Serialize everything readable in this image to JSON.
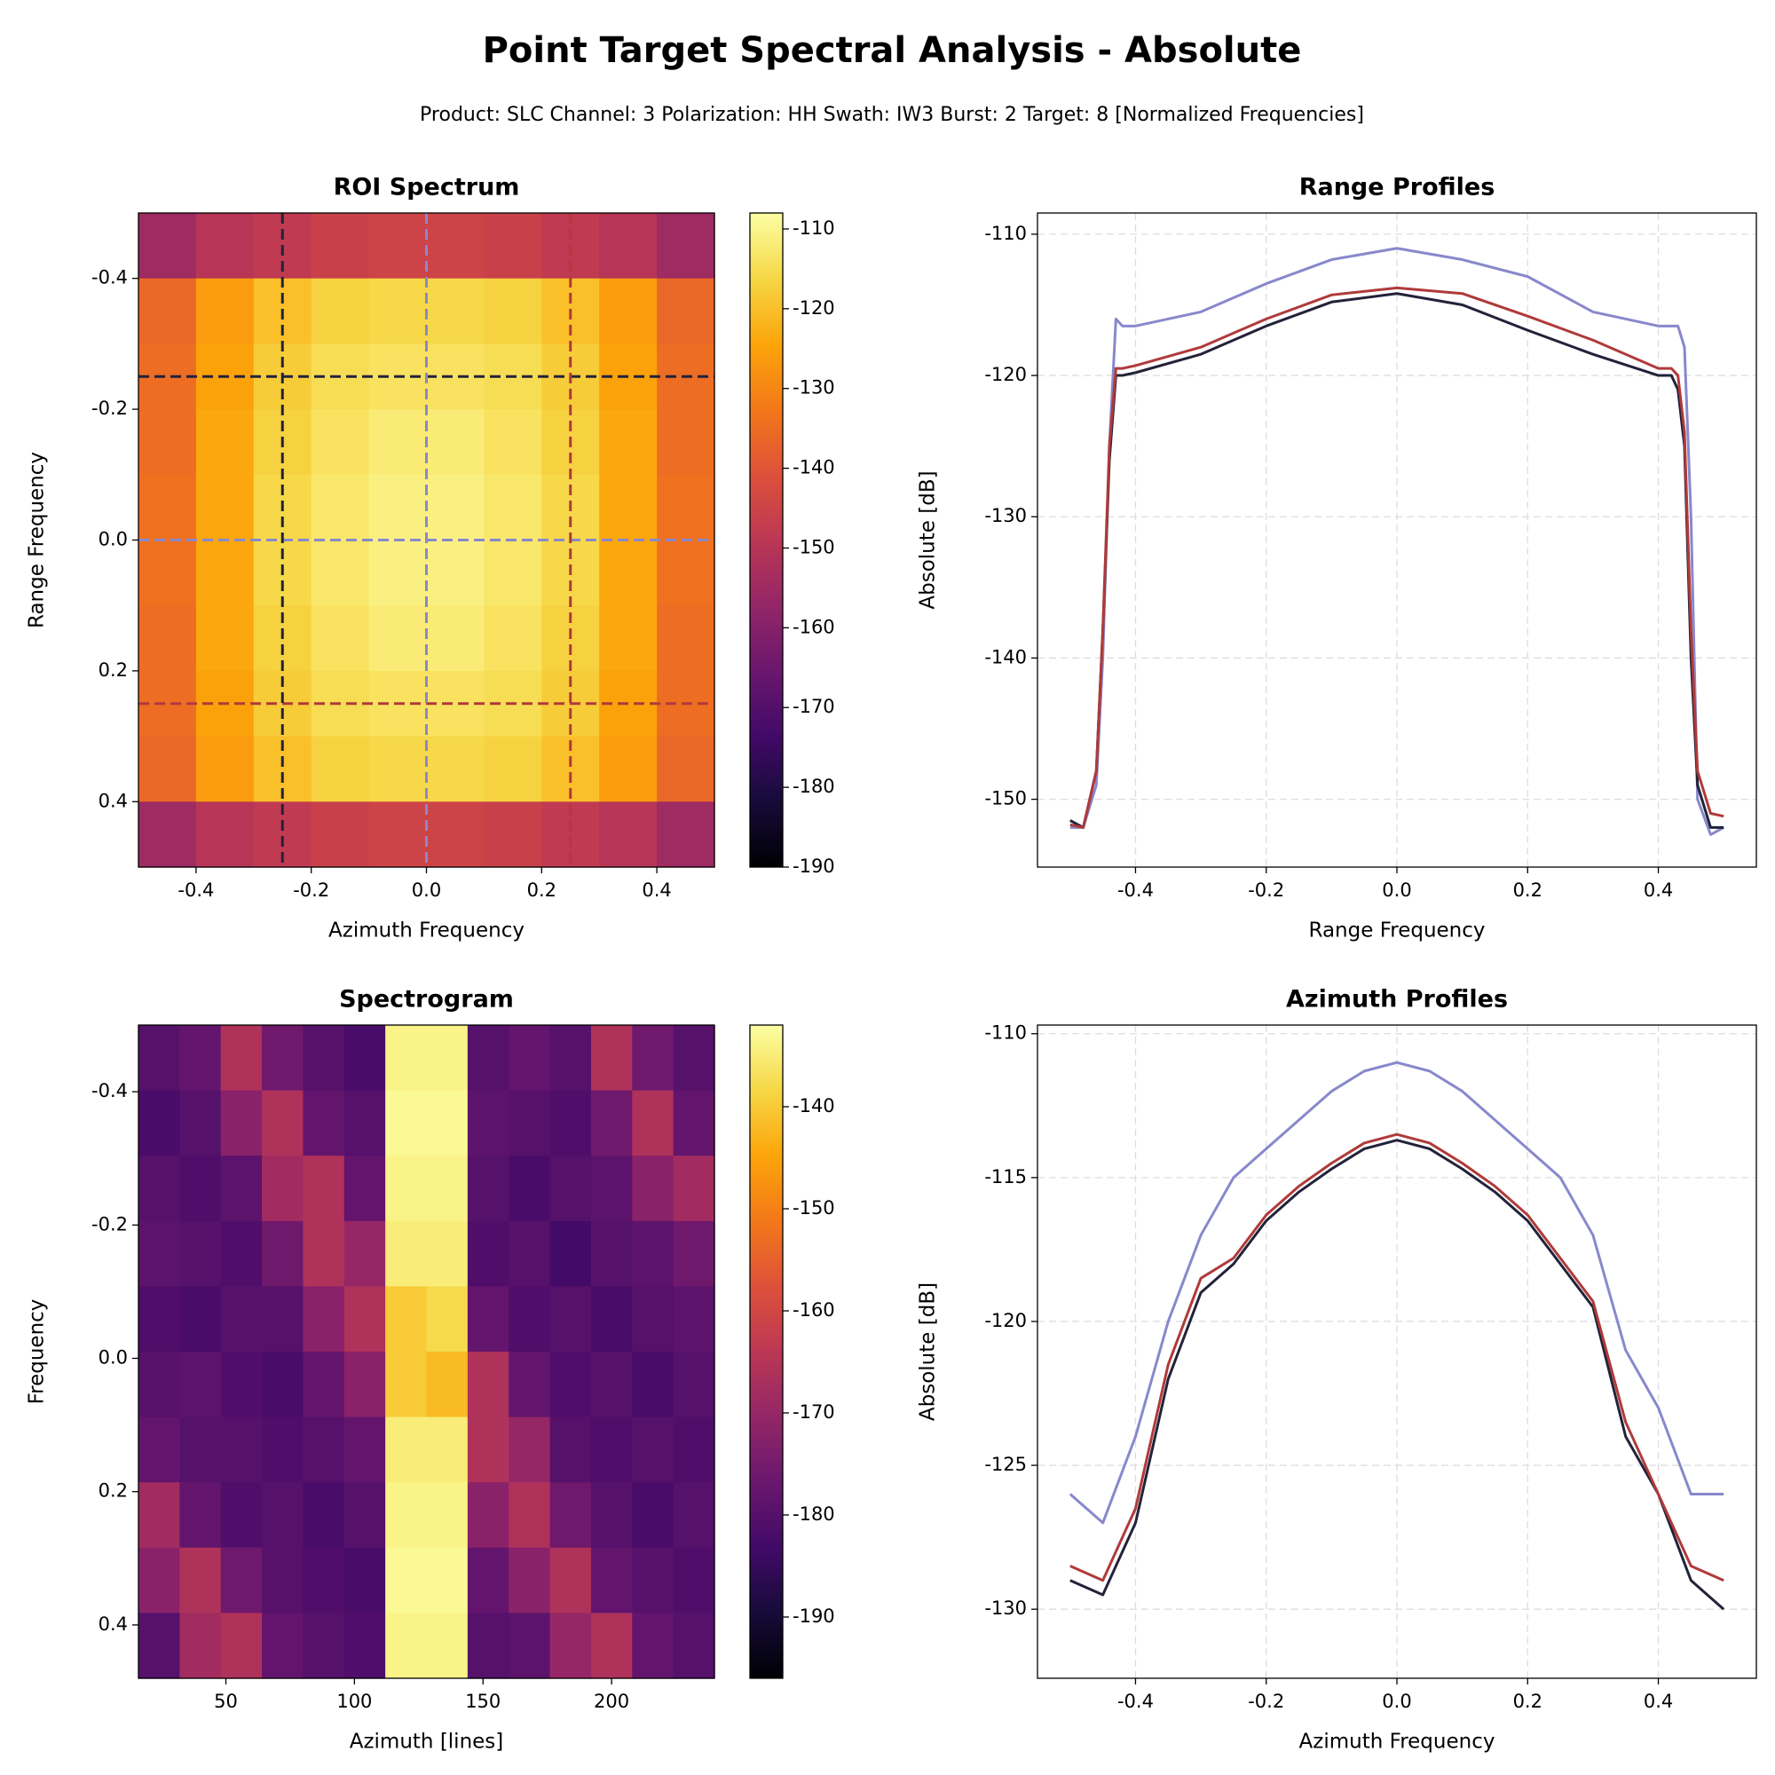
{
  "title": "Point Target Spectral Analysis - Absolute",
  "subtitle": "Product: SLC   Channel: 3  Polarization: HH   Swath: IW3   Burst: 2   Target: 8   [Normalized Frequencies]",
  "chart_data": [
    {
      "type": "heatmap",
      "title": "ROI Spectrum",
      "x_label": "Azimuth Frequency",
      "y_label": "Range Frequency",
      "xlim": [
        -0.5,
        0.5
      ],
      "ylim": [
        -0.5,
        0.5
      ],
      "y_inverted": true,
      "xticks": [
        -0.4,
        -0.2,
        {
          "value": 0,
          "label": "0.0"
        },
        0.2,
        0.4
      ],
      "yticks": [
        -0.4,
        -0.2,
        {
          "value": 0,
          "label": "0.0"
        },
        0.2,
        0.4
      ],
      "colormap": "inferno",
      "clim": [
        -190,
        -108
      ],
      "cticks": [
        -190,
        -180,
        -170,
        -160,
        -150,
        -140,
        -130,
        -120,
        -110
      ],
      "matrix": [
        [
          -155,
          -150,
          -148,
          -146,
          -145,
          -145,
          -146,
          -148,
          -150,
          -155
        ],
        [
          -136,
          -126,
          -120,
          -117,
          -116,
          -116,
          -117,
          -120,
          -126,
          -136
        ],
        [
          -135,
          -125,
          -118,
          -115,
          -114,
          -114,
          -115,
          -118,
          -125,
          -135
        ],
        [
          -135,
          -124,
          -117,
          -114,
          -112,
          -112,
          -114,
          -117,
          -124,
          -135
        ],
        [
          -134,
          -124,
          -116,
          -113,
          -111,
          -111,
          -113,
          -116,
          -124,
          -134
        ],
        [
          -134,
          -124,
          -116,
          -113,
          -111,
          -111,
          -113,
          -116,
          -124,
          -134
        ],
        [
          -135,
          -124,
          -117,
          -114,
          -112,
          -112,
          -114,
          -117,
          -124,
          -135
        ],
        [
          -135,
          -125,
          -118,
          -115,
          -114,
          -114,
          -115,
          -118,
          -125,
          -135
        ],
        [
          -136,
          -126,
          -120,
          -117,
          -116,
          -116,
          -117,
          -120,
          -126,
          -136
        ],
        [
          -155,
          -150,
          -148,
          -146,
          -145,
          -145,
          -146,
          -148,
          -150,
          -155
        ]
      ],
      "cuts": [
        {
          "axis": "y",
          "value": -0.25,
          "color": "#22223a"
        },
        {
          "axis": "y",
          "value": 0,
          "color": "#8888cc"
        },
        {
          "axis": "y",
          "value": 0.25,
          "color": "#b03a3a"
        },
        {
          "axis": "x",
          "value": -0.25,
          "color": "#22223a"
        },
        {
          "axis": "x",
          "value": 0,
          "color": "#8888cc"
        },
        {
          "axis": "x",
          "value": 0.25,
          "color": "#b03a3a"
        }
      ]
    },
    {
      "type": "line",
      "title": "Range Profiles",
      "x_label": "Range Frequency",
      "y_label": "Absolute [dB]",
      "xlim": [
        -0.55,
        0.55
      ],
      "ylim": [
        -154.8,
        -108.5
      ],
      "xticks": [
        -0.4,
        -0.2,
        {
          "value": 0,
          "label": "0.0"
        },
        0.2,
        0.4
      ],
      "yticks": [
        -150,
        -140,
        -130,
        -120,
        -110
      ],
      "grid": true,
      "x": [
        -0.5,
        -0.48,
        -0.46,
        -0.45,
        -0.44,
        -0.43,
        -0.42,
        -0.4,
        -0.3,
        -0.2,
        -0.1,
        0,
        0.1,
        0.2,
        0.3,
        0.4,
        0.42,
        0.43,
        0.44,
        0.45,
        0.46,
        0.48,
        0.5
      ],
      "series": [
        {
          "color": "#8888cc",
          "values": [
            -152,
            -152,
            -149,
            -140,
            -125,
            -116,
            -116.5,
            -116.5,
            -115.5,
            -113.5,
            -111.8,
            -111,
            -111.8,
            -113,
            -115.5,
            -116.5,
            -116.5,
            -116.5,
            -118,
            -130,
            -150,
            -152.5,
            -152
          ]
        },
        {
          "color": "#22223a",
          "values": [
            -151.5,
            -152,
            -148,
            -138,
            -126,
            -120,
            -120,
            -119.8,
            -118.5,
            -116.5,
            -114.8,
            -114.2,
            -115,
            -116.8,
            -118.5,
            -120,
            -120,
            -121,
            -125,
            -140,
            -149,
            -152,
            -152
          ]
        },
        {
          "color": "#b03a3a",
          "values": [
            -151.8,
            -152,
            -148,
            -138,
            -125,
            -119.5,
            -119.5,
            -119.3,
            -118,
            -116,
            -114.3,
            -113.8,
            -114.2,
            -115.8,
            -117.5,
            -119.5,
            -119.5,
            -120,
            -124,
            -138,
            -148,
            -151,
            -151.2
          ]
        }
      ]
    },
    {
      "type": "heatmap",
      "title": "Spectrogram",
      "x_label": "Azimuth [lines]",
      "y_label": "Frequency",
      "xlim": [
        16,
        240
      ],
      "ylim": [
        -0.5,
        0.48
      ],
      "y_inverted": true,
      "xticks": [
        50,
        100,
        150,
        200
      ],
      "yticks": [
        -0.4,
        -0.2,
        {
          "value": 0,
          "label": "0.0"
        },
        0.2,
        0.4
      ],
      "colormap": "inferno",
      "clim": [
        -196,
        -132
      ],
      "cticks": [
        -190,
        -180,
        -170,
        -160,
        -150,
        -140
      ],
      "matrix": [
        [
          -180,
          -178,
          -166,
          -176,
          -180,
          -182,
          -134,
          -134,
          -180,
          -178,
          -180,
          -166,
          -176,
          -180
        ],
        [
          -182,
          -180,
          -172,
          -166,
          -178,
          -180,
          -133,
          -133,
          -179,
          -180,
          -181,
          -176,
          -166,
          -178
        ],
        [
          -180,
          -181,
          -179,
          -168,
          -166,
          -178,
          -134,
          -134,
          -180,
          -182,
          -180,
          -179,
          -172,
          -168
        ],
        [
          -179,
          -180,
          -181,
          -176,
          -166,
          -170,
          -135,
          -135,
          -181,
          -180,
          -183,
          -180,
          -179,
          -176
        ],
        [
          -181,
          -182,
          -180,
          -180,
          -172,
          -166,
          -140,
          -138,
          -178,
          -181,
          -180,
          -182,
          -180,
          -179
        ],
        [
          -180,
          -179,
          -181,
          -182,
          -178,
          -172,
          -140,
          -142,
          -166,
          -178,
          -181,
          -180,
          -182,
          -180
        ],
        [
          -178,
          -180,
          -180,
          -181,
          -180,
          -178,
          -135,
          -135,
          -166,
          -170,
          -180,
          -181,
          -180,
          -181
        ],
        [
          -168,
          -178,
          -181,
          -180,
          -182,
          -180,
          -134,
          -134,
          -172,
          -166,
          -176,
          -180,
          -182,
          -180
        ],
        [
          -172,
          -166,
          -176,
          -180,
          -181,
          -182,
          -133,
          -133,
          -178,
          -172,
          -166,
          -178,
          -180,
          -181
        ],
        [
          -180,
          -168,
          -166,
          -178,
          -180,
          -181,
          -134,
          -134,
          -180,
          -179,
          -170,
          -166,
          -178,
          -180
        ]
      ]
    },
    {
      "type": "line",
      "title": "Azimuth Profiles",
      "x_label": "Azimuth Frequency",
      "y_label": "Absolute [dB]",
      "xlim": [
        -0.55,
        0.55
      ],
      "ylim": [
        -132.4,
        -109.7
      ],
      "xticks": [
        -0.4,
        -0.2,
        {
          "value": 0,
          "label": "0.0"
        },
        0.2,
        0.4
      ],
      "yticks": [
        -130,
        -125,
        -120,
        -115,
        -110
      ],
      "grid": true,
      "x": [
        -0.5,
        -0.45,
        -0.4,
        -0.35,
        -0.3,
        -0.25,
        -0.2,
        -0.15,
        -0.1,
        -0.05,
        0,
        0.05,
        0.1,
        0.15,
        0.2,
        0.25,
        0.3,
        0.35,
        0.4,
        0.45,
        0.5
      ],
      "series": [
        {
          "color": "#8888cc",
          "values": [
            -126,
            -127,
            -124,
            -120,
            -117,
            -115,
            -114,
            -113,
            -112,
            -111.3,
            -111,
            -111.3,
            -112,
            -113,
            -114,
            -115,
            -117,
            -121,
            -123,
            -126,
            -126
          ]
        },
        {
          "color": "#22223a",
          "values": [
            -129,
            -129.5,
            -127,
            -122,
            -119,
            -118,
            -116.5,
            -115.5,
            -114.7,
            -114,
            -113.7,
            -114,
            -114.7,
            -115.5,
            -116.5,
            -118,
            -119.5,
            -124,
            -126,
            -129,
            -130
          ]
        },
        {
          "color": "#b03a3a",
          "values": [
            -128.5,
            -129,
            -126.5,
            -121.5,
            -118.5,
            -117.8,
            -116.3,
            -115.3,
            -114.5,
            -113.8,
            -113.5,
            -113.8,
            -114.5,
            -115.3,
            -116.3,
            -117.8,
            -119.3,
            -123.5,
            -126,
            -128.5,
            -129
          ]
        }
      ]
    }
  ]
}
